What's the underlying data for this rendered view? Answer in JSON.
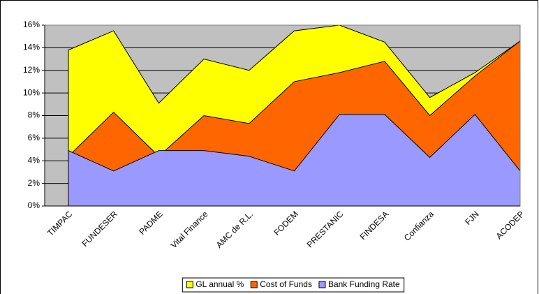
{
  "chart_data": {
    "type": "area",
    "categories": [
      "TIMPAC",
      "FUNDESER",
      "PADME",
      "Vital Finance",
      "AMC de R.L.",
      "FODEM",
      "PRESTANIC",
      "FINDESA",
      "Confianza",
      "FJN",
      "ACODEP"
    ],
    "series": [
      {
        "name": "GL annual %",
        "color": "#ffff00",
        "values": [
          13.8,
          15.5,
          9.1,
          13.0,
          12.0,
          15.5,
          16.0,
          14.5,
          9.6,
          11.8,
          14.6
        ]
      },
      {
        "name": "Cost of Funds",
        "color": "#ff6600",
        "values": [
          4.4,
          8.3,
          4.4,
          8.0,
          7.3,
          11.0,
          11.8,
          12.8,
          8.0,
          11.5,
          14.6
        ]
      },
      {
        "name": "Bank Funding Rate",
        "color": "#9999ff",
        "values": [
          4.9,
          3.1,
          4.9,
          4.9,
          4.4,
          3.1,
          8.1,
          8.1,
          4.3,
          8.1,
          3.1
        ]
      }
    ],
    "ylim": [
      0,
      16
    ],
    "yticks": [
      {
        "value": 0,
        "label": "0%"
      },
      {
        "value": 2,
        "label": "2%"
      },
      {
        "value": 4,
        "label": "4%"
      },
      {
        "value": 6,
        "label": "6%"
      },
      {
        "value": 8,
        "label": "8%"
      },
      {
        "value": 10,
        "label": "10%"
      },
      {
        "value": 12,
        "label": "12%"
      },
      {
        "value": 14,
        "label": "14%"
      },
      {
        "value": 16,
        "label": "16%"
      }
    ],
    "grid": true,
    "legend": "bottom"
  }
}
